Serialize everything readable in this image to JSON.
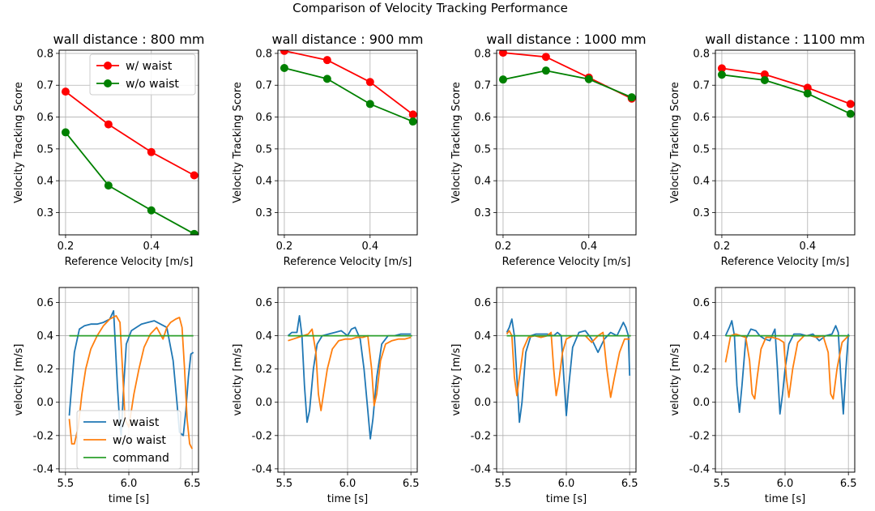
{
  "figure": {
    "title": "Comparison of Velocity Tracking Performance"
  },
  "chart_data": [
    {
      "type": "line",
      "title": "wall distance : 800 mm",
      "xlabel": "Reference Velocity [m/s]",
      "ylabel": "Velocity Tracking Score",
      "xlim": [
        0.185,
        0.51
      ],
      "ylim": [
        0.23,
        0.81
      ],
      "xticks": [
        "0.2",
        "0.4"
      ],
      "xtick_values": [
        0.2,
        0.4
      ],
      "yticks": [
        "0.3",
        "0.4",
        "0.5",
        "0.6",
        "0.7",
        "0.8"
      ],
      "ytick_values": [
        0.3,
        0.4,
        0.5,
        0.6,
        0.7,
        0.8
      ],
      "grid": true,
      "legend_location": "top-right",
      "x": [
        0.2,
        0.3,
        0.4,
        0.5
      ],
      "series": [
        {
          "name": "w/ waist",
          "color": "#ff0000",
          "values": [
            0.68,
            0.577,
            0.49,
            0.417
          ]
        },
        {
          "name": "w/o waist",
          "color": "#008000",
          "values": [
            0.552,
            0.385,
            0.307,
            0.233
          ]
        }
      ]
    },
    {
      "type": "line",
      "title": "wall distance : 900 mm",
      "xlabel": "Reference Velocity [m/s]",
      "ylabel": "Velocity Tracking Score",
      "xlim": [
        0.185,
        0.51
      ],
      "ylim": [
        0.23,
        0.81
      ],
      "xticks": [
        "0.2",
        "0.4"
      ],
      "xtick_values": [
        0.2,
        0.4
      ],
      "yticks": [
        "0.3",
        "0.4",
        "0.5",
        "0.6",
        "0.7",
        "0.8"
      ],
      "ytick_values": [
        0.3,
        0.4,
        0.5,
        0.6,
        0.7,
        0.8
      ],
      "grid": true,
      "x": [
        0.2,
        0.3,
        0.4,
        0.5
      ],
      "series": [
        {
          "name": "w/ waist",
          "color": "#ff0000",
          "values": [
            0.808,
            0.779,
            0.71,
            0.608
          ]
        },
        {
          "name": "w/o waist",
          "color": "#008000",
          "values": [
            0.754,
            0.72,
            0.641,
            0.586
          ]
        }
      ]
    },
    {
      "type": "line",
      "title": "wall distance : 1000 mm",
      "xlabel": "Reference Velocity [m/s]",
      "ylabel": "Velocity Tracking Score",
      "xlim": [
        0.185,
        0.51
      ],
      "ylim": [
        0.23,
        0.81
      ],
      "xticks": [
        "0.2",
        "0.4"
      ],
      "xtick_values": [
        0.2,
        0.4
      ],
      "yticks": [
        "0.3",
        "0.4",
        "0.5",
        "0.6",
        "0.7",
        "0.8"
      ],
      "ytick_values": [
        0.3,
        0.4,
        0.5,
        0.6,
        0.7,
        0.8
      ],
      "grid": true,
      "x": [
        0.2,
        0.3,
        0.4,
        0.5
      ],
      "series": [
        {
          "name": "w/ waist",
          "color": "#ff0000",
          "values": [
            0.802,
            0.789,
            0.724,
            0.658
          ]
        },
        {
          "name": "w/o waist",
          "color": "#008000",
          "values": [
            0.718,
            0.746,
            0.719,
            0.662
          ]
        }
      ]
    },
    {
      "type": "line",
      "title": "wall distance : 1100 mm",
      "xlabel": "Reference Velocity [m/s]",
      "ylabel": "Velocity Tracking Score",
      "xlim": [
        0.185,
        0.51
      ],
      "ylim": [
        0.23,
        0.81
      ],
      "xticks": [
        "0.2",
        "0.4"
      ],
      "xtick_values": [
        0.2,
        0.4
      ],
      "yticks": [
        "0.3",
        "0.4",
        "0.5",
        "0.6",
        "0.7",
        "0.8"
      ],
      "ytick_values": [
        0.3,
        0.4,
        0.5,
        0.6,
        0.7,
        0.8
      ],
      "grid": true,
      "x": [
        0.2,
        0.3,
        0.4,
        0.5
      ],
      "series": [
        {
          "name": "w/ waist",
          "color": "#ff0000",
          "values": [
            0.753,
            0.734,
            0.692,
            0.641
          ]
        },
        {
          "name": "w/o waist",
          "color": "#008000",
          "values": [
            0.733,
            0.716,
            0.674,
            0.61
          ]
        }
      ]
    },
    {
      "type": "line",
      "title": "",
      "xlabel": "time [s]",
      "ylabel": "velocity [m/s]",
      "xlim": [
        5.45,
        6.55
      ],
      "ylim": [
        -0.42,
        0.69
      ],
      "xticks": [
        "5.5",
        "6.0",
        "6.5"
      ],
      "xtick_values": [
        5.5,
        6.0,
        6.5
      ],
      "yticks": [
        "-0.4",
        "-0.2",
        "0.0",
        "0.2",
        "0.4",
        "0.6"
      ],
      "ytick_values": [
        -0.4,
        -0.2,
        0.0,
        0.2,
        0.4,
        0.6
      ],
      "grid": true,
      "legend_location": "bottom-left",
      "series": [
        {
          "name": "w/ waist",
          "color": "#1f77b4",
          "x": [
            5.53,
            5.57,
            5.61,
            5.65,
            5.7,
            5.75,
            5.8,
            5.85,
            5.88,
            5.89,
            5.91,
            5.93,
            5.94,
            5.96,
            5.98,
            6.02,
            6.06,
            6.1,
            6.15,
            6.2,
            6.25,
            6.3,
            6.35,
            6.38,
            6.4,
            6.43,
            6.45,
            6.47,
            6.49,
            6.51
          ],
          "values": [
            -0.08,
            0.3,
            0.44,
            0.46,
            0.47,
            0.47,
            0.48,
            0.5,
            0.55,
            0.4,
            0.1,
            -0.15,
            -0.2,
            0.1,
            0.35,
            0.43,
            0.45,
            0.47,
            0.48,
            0.49,
            0.47,
            0.45,
            0.25,
            0.0,
            -0.18,
            -0.2,
            -0.05,
            0.15,
            0.29,
            0.3
          ]
        },
        {
          "name": "w/o waist",
          "color": "#ff7f0e",
          "x": [
            5.53,
            5.55,
            5.57,
            5.6,
            5.63,
            5.66,
            5.7,
            5.75,
            5.8,
            5.85,
            5.9,
            5.93,
            5.95,
            5.97,
            6.0,
            6.04,
            6.08,
            6.12,
            6.17,
            6.22,
            6.27,
            6.3,
            6.33,
            6.37,
            6.4,
            6.42,
            6.44,
            6.46,
            6.48,
            6.5
          ],
          "values": [
            -0.1,
            -0.25,
            -0.25,
            -0.15,
            0.05,
            0.2,
            0.32,
            0.4,
            0.46,
            0.5,
            0.52,
            0.48,
            0.2,
            -0.1,
            -0.15,
            0.05,
            0.2,
            0.33,
            0.41,
            0.45,
            0.38,
            0.45,
            0.48,
            0.5,
            0.51,
            0.45,
            0.2,
            -0.1,
            -0.25,
            -0.28
          ]
        },
        {
          "name": "command",
          "color": "#2ca02c",
          "x": [
            5.53,
            6.51
          ],
          "values": [
            0.4,
            0.4
          ]
        }
      ]
    },
    {
      "type": "line",
      "title": "",
      "xlabel": "time [s]",
      "ylabel": "velocity [m/s]",
      "xlim": [
        5.45,
        6.55
      ],
      "ylim": [
        -0.42,
        0.69
      ],
      "xticks": [
        "5.5",
        "6.0",
        "6.5"
      ],
      "xtick_values": [
        5.5,
        6.0,
        6.5
      ],
      "yticks": [
        "-0.4",
        "-0.2",
        "0.0",
        "0.2",
        "0.4",
        "0.6"
      ],
      "ytick_values": [
        -0.4,
        -0.2,
        0.0,
        0.2,
        0.4,
        0.6
      ],
      "grid": true,
      "series": [
        {
          "name": "w/ waist",
          "color": "#1f77b4",
          "x": [
            5.53,
            5.56,
            5.6,
            5.62,
            5.64,
            5.66,
            5.68,
            5.7,
            5.73,
            5.76,
            5.8,
            5.85,
            5.9,
            5.95,
            6.0,
            6.03,
            6.06,
            6.1,
            6.13,
            6.16,
            6.18,
            6.2,
            6.23,
            6.27,
            6.32,
            6.37,
            6.42,
            6.47,
            6.5
          ],
          "values": [
            0.4,
            0.42,
            0.42,
            0.52,
            0.4,
            0.1,
            -0.12,
            -0.05,
            0.2,
            0.35,
            0.4,
            0.41,
            0.42,
            0.43,
            0.4,
            0.44,
            0.45,
            0.38,
            0.2,
            -0.05,
            -0.22,
            -0.1,
            0.15,
            0.35,
            0.4,
            0.4,
            0.41,
            0.41,
            0.41
          ]
        },
        {
          "name": "w/o waist",
          "color": "#ff7f0e",
          "x": [
            5.53,
            5.57,
            5.61,
            5.65,
            5.69,
            5.72,
            5.75,
            5.77,
            5.79,
            5.81,
            5.84,
            5.88,
            5.93,
            5.98,
            6.03,
            6.07,
            6.12,
            6.16,
            6.19,
            6.21,
            6.23,
            6.26,
            6.3,
            6.35,
            6.4,
            6.45,
            6.5
          ],
          "values": [
            0.37,
            0.38,
            0.39,
            0.4,
            0.41,
            0.44,
            0.3,
            0.05,
            -0.05,
            0.05,
            0.2,
            0.32,
            0.37,
            0.38,
            0.38,
            0.39,
            0.39,
            0.4,
            0.2,
            -0.02,
            0.05,
            0.25,
            0.35,
            0.37,
            0.38,
            0.38,
            0.39
          ]
        },
        {
          "name": "command",
          "color": "#2ca02c",
          "x": [
            5.53,
            6.51
          ],
          "values": [
            0.4,
            0.4
          ]
        }
      ]
    },
    {
      "type": "line",
      "title": "",
      "xlabel": "time [s]",
      "ylabel": "velocity [m/s]",
      "xlim": [
        5.45,
        6.55
      ],
      "ylim": [
        -0.42,
        0.69
      ],
      "xticks": [
        "5.5",
        "6.0",
        "6.5"
      ],
      "xtick_values": [
        5.5,
        6.0,
        6.5
      ],
      "yticks": [
        "-0.4",
        "-0.2",
        "0.0",
        "0.2",
        "0.4",
        "0.6"
      ],
      "ytick_values": [
        -0.4,
        -0.2,
        0.0,
        0.2,
        0.4,
        0.6
      ],
      "grid": true,
      "series": [
        {
          "name": "w/ waist",
          "color": "#1f77b4",
          "x": [
            5.53,
            5.55,
            5.57,
            5.59,
            5.61,
            5.63,
            5.65,
            5.68,
            5.72,
            5.76,
            5.8,
            5.85,
            5.9,
            5.93,
            5.96,
            5.98,
            6.0,
            6.02,
            6.05,
            6.1,
            6.15,
            6.2,
            6.25,
            6.3,
            6.35,
            6.4,
            6.45,
            6.47,
            6.49,
            6.5
          ],
          "values": [
            0.42,
            0.45,
            0.5,
            0.4,
            0.15,
            -0.12,
            0.0,
            0.3,
            0.4,
            0.41,
            0.41,
            0.41,
            0.4,
            0.42,
            0.4,
            0.15,
            -0.08,
            0.1,
            0.33,
            0.42,
            0.43,
            0.38,
            0.3,
            0.38,
            0.42,
            0.4,
            0.48,
            0.45,
            0.4,
            0.16
          ]
        },
        {
          "name": "w/o waist",
          "color": "#ff7f0e",
          "x": [
            5.53,
            5.55,
            5.57,
            5.59,
            5.61,
            5.63,
            5.66,
            5.7,
            5.75,
            5.8,
            5.85,
            5.88,
            5.9,
            5.92,
            5.94,
            5.97,
            6.0,
            6.05,
            6.1,
            6.15,
            6.2,
            6.25,
            6.29,
            6.32,
            6.35,
            6.38,
            6.42,
            6.46,
            6.5
          ],
          "values": [
            0.41,
            0.43,
            0.4,
            0.15,
            0.04,
            0.15,
            0.32,
            0.39,
            0.4,
            0.39,
            0.4,
            0.42,
            0.2,
            0.04,
            0.12,
            0.3,
            0.38,
            0.4,
            0.4,
            0.4,
            0.36,
            0.4,
            0.42,
            0.2,
            0.03,
            0.15,
            0.3,
            0.38,
            0.38
          ]
        },
        {
          "name": "command",
          "color": "#2ca02c",
          "x": [
            5.53,
            6.51
          ],
          "values": [
            0.4,
            0.4
          ]
        }
      ]
    },
    {
      "type": "line",
      "title": "",
      "xlabel": "time [s]",
      "ylabel": "velocity [m/s]",
      "xlim": [
        5.45,
        6.55
      ],
      "ylim": [
        -0.42,
        0.69
      ],
      "xticks": [
        "5.5",
        "6.0",
        "6.5"
      ],
      "xtick_values": [
        5.5,
        6.0,
        6.5
      ],
      "yticks": [
        "-0.4",
        "-0.2",
        "0.0",
        "0.2",
        "0.4",
        "0.6"
      ],
      "ytick_values": [
        -0.4,
        -0.2,
        0.0,
        0.2,
        0.4,
        0.6
      ],
      "grid": true,
      "series": [
        {
          "name": "w/ waist",
          "color": "#1f77b4",
          "x": [
            5.53,
            5.56,
            5.58,
            5.6,
            5.62,
            5.64,
            5.66,
            5.69,
            5.73,
            5.77,
            5.8,
            5.84,
            5.88,
            5.92,
            5.94,
            5.96,
            5.98,
            6.0,
            6.03,
            6.07,
            6.12,
            6.17,
            6.22,
            6.27,
            6.32,
            6.37,
            6.4,
            6.42,
            6.44,
            6.46,
            6.48,
            6.5
          ],
          "values": [
            0.4,
            0.45,
            0.49,
            0.4,
            0.1,
            -0.06,
            0.1,
            0.38,
            0.44,
            0.43,
            0.4,
            0.38,
            0.37,
            0.44,
            0.2,
            -0.07,
            0.05,
            0.2,
            0.35,
            0.41,
            0.41,
            0.4,
            0.41,
            0.37,
            0.4,
            0.41,
            0.46,
            0.42,
            0.15,
            -0.07,
            0.2,
            0.41
          ]
        },
        {
          "name": "w/o waist",
          "color": "#ff7f0e",
          "x": [
            5.53,
            5.57,
            5.61,
            5.65,
            5.69,
            5.72,
            5.74,
            5.76,
            5.78,
            5.81,
            5.85,
            5.9,
            5.95,
            5.99,
            6.01,
            6.03,
            6.06,
            6.1,
            6.15,
            6.2,
            6.25,
            6.3,
            6.34,
            6.36,
            6.38,
            6.41,
            6.45,
            6.5
          ],
          "values": [
            0.24,
            0.4,
            0.41,
            0.4,
            0.39,
            0.25,
            0.05,
            0.02,
            0.15,
            0.32,
            0.39,
            0.39,
            0.38,
            0.36,
            0.15,
            0.03,
            0.2,
            0.36,
            0.4,
            0.4,
            0.39,
            0.4,
            0.3,
            0.05,
            0.02,
            0.2,
            0.36,
            0.4
          ]
        },
        {
          "name": "command",
          "color": "#2ca02c",
          "x": [
            5.53,
            6.51
          ],
          "values": [
            0.4,
            0.4
          ]
        }
      ]
    }
  ]
}
